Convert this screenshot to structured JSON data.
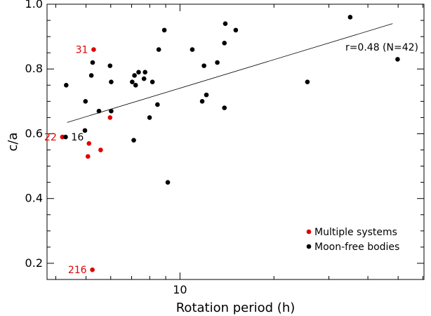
{
  "chart_data": {
    "type": "scatter",
    "xlabel": "Rotation period (h)",
    "ylabel": "c/a",
    "xscale": "log",
    "xlim": [
      3.75,
      60.5
    ],
    "ylim": [
      0.15,
      1.0
    ],
    "xticks": [
      {
        "value": 10,
        "label": "10"
      }
    ],
    "yticks": [
      {
        "value": 0.2,
        "label": "0.2"
      },
      {
        "value": 0.4,
        "label": "0.4"
      },
      {
        "value": 0.6,
        "label": "0.6"
      },
      {
        "value": 0.8,
        "label": "0.8"
      },
      {
        "value": 1.0,
        "label": "1.0"
      }
    ],
    "grid": false,
    "legend_position": "bottom-right",
    "series": [
      {
        "name": "Multiple systems",
        "color": "#e00000",
        "points": [
          {
            "x": 5.29,
            "y": 0.86,
            "label": "31"
          },
          {
            "x": 4.2,
            "y": 0.59,
            "label": "22"
          },
          {
            "x": 5.97,
            "y": 0.65
          },
          {
            "x": 5.11,
            "y": 0.57
          },
          {
            "x": 5.57,
            "y": 0.55
          },
          {
            "x": 5.07,
            "y": 0.53
          },
          {
            "x": 5.24,
            "y": 0.18,
            "label": "216"
          }
        ]
      },
      {
        "name": "Moon-free bodies",
        "color": "#000000",
        "points": [
          {
            "x": 4.3,
            "y": 0.59,
            "label": "16"
          },
          {
            "x": 4.32,
            "y": 0.75
          },
          {
            "x": 4.98,
            "y": 0.7
          },
          {
            "x": 4.96,
            "y": 0.61
          },
          {
            "x": 5.25,
            "y": 0.82
          },
          {
            "x": 5.2,
            "y": 0.78
          },
          {
            "x": 5.5,
            "y": 0.67
          },
          {
            "x": 5.97,
            "y": 0.81
          },
          {
            "x": 6.02,
            "y": 0.76
          },
          {
            "x": 6.02,
            "y": 0.67
          },
          {
            "x": 7.03,
            "y": 0.76
          },
          {
            "x": 7.15,
            "y": 0.78
          },
          {
            "x": 7.21,
            "y": 0.75
          },
          {
            "x": 7.37,
            "y": 0.79
          },
          {
            "x": 7.73,
            "y": 0.79
          },
          {
            "x": 7.67,
            "y": 0.77
          },
          {
            "x": 8.16,
            "y": 0.76
          },
          {
            "x": 8.55,
            "y": 0.86
          },
          {
            "x": 8.91,
            "y": 0.92
          },
          {
            "x": 7.11,
            "y": 0.58
          },
          {
            "x": 7.99,
            "y": 0.65
          },
          {
            "x": 8.47,
            "y": 0.69
          },
          {
            "x": 9.14,
            "y": 0.45
          },
          {
            "x": 10.95,
            "y": 0.86
          },
          {
            "x": 11.94,
            "y": 0.81
          },
          {
            "x": 11.78,
            "y": 0.7
          },
          {
            "x": 12.15,
            "y": 0.72
          },
          {
            "x": 13.17,
            "y": 0.82
          },
          {
            "x": 13.97,
            "y": 0.94
          },
          {
            "x": 13.88,
            "y": 0.88
          },
          {
            "x": 15.09,
            "y": 0.92
          },
          {
            "x": 13.88,
            "y": 0.68
          },
          {
            "x": 25.6,
            "y": 0.76
          },
          {
            "x": 35.1,
            "y": 0.96
          },
          {
            "x": 49.8,
            "y": 0.83
          }
        ]
      }
    ],
    "fit_line": {
      "label": "r=0.48 (N=42)",
      "x": [
        4.35,
        48.0
      ],
      "y": [
        0.635,
        0.94
      ]
    }
  }
}
